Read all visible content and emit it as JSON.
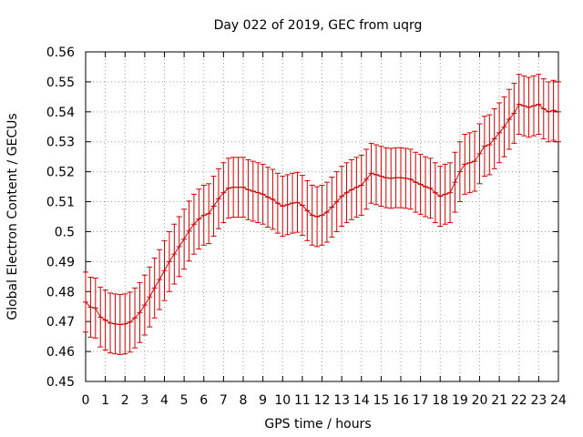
{
  "chart_data": {
    "type": "line",
    "title": "Day 022 of 2019, GEC from uqrg",
    "xlabel": "GPS time / hours",
    "ylabel": "Global Electron Content / GECUs",
    "xlim": [
      0,
      24
    ],
    "ylim": [
      0.45,
      0.56
    ],
    "grid": true,
    "x_ticks": [
      "0",
      "1",
      "2",
      "3",
      "4",
      "5",
      "6",
      "7",
      "8",
      "9",
      "10",
      "11",
      "12",
      "13",
      "14",
      "15",
      "16",
      "17",
      "18",
      "19",
      "20",
      "21",
      "22",
      "23",
      "24"
    ],
    "y_ticks": [
      "0.45",
      "0.46",
      "0.47",
      "0.48",
      "0.49",
      "0.5",
      "0.51",
      "0.52",
      "0.53",
      "0.54",
      "0.55",
      "0.56"
    ],
    "y_tick_values": [
      0.45,
      0.46,
      0.47,
      0.48,
      0.49,
      0.5,
      0.51,
      0.52,
      0.53,
      0.54,
      0.55,
      0.56
    ],
    "error": 0.01,
    "color": "#cc0000",
    "series": [
      {
        "name": "GEC",
        "x": [
          0,
          0.25,
          0.5,
          0.75,
          1,
          1.25,
          1.5,
          1.75,
          2,
          2.25,
          2.5,
          2.75,
          3,
          3.25,
          3.5,
          3.75,
          4,
          4.25,
          4.5,
          4.75,
          5,
          5.25,
          5.5,
          5.75,
          6,
          6.25,
          6.5,
          6.75,
          7,
          7.25,
          7.5,
          7.75,
          8,
          8.25,
          8.5,
          8.75,
          9,
          9.25,
          9.5,
          9.75,
          10,
          10.25,
          10.5,
          10.75,
          11,
          11.25,
          11.5,
          11.75,
          12,
          12.25,
          12.5,
          12.75,
          13,
          13.25,
          13.5,
          13.75,
          14,
          14.25,
          14.5,
          14.75,
          15,
          15.25,
          15.5,
          15.75,
          16,
          16.25,
          16.5,
          16.75,
          17,
          17.25,
          17.5,
          17.75,
          18,
          18.25,
          18.5,
          18.75,
          19,
          19.25,
          19.5,
          19.75,
          20,
          20.25,
          20.5,
          20.75,
          21,
          21.25,
          21.5,
          21.75,
          22,
          22.25,
          22.5,
          22.75,
          23,
          23.25,
          23.5,
          23.75,
          24
        ],
        "y": [
          0.4765,
          0.4748,
          0.4745,
          0.4715,
          0.4705,
          0.4695,
          0.4692,
          0.469,
          0.4692,
          0.4698,
          0.4712,
          0.473,
          0.4755,
          0.4782,
          0.4812,
          0.484,
          0.487,
          0.49,
          0.4925,
          0.495,
          0.4975,
          0.5002,
          0.5025,
          0.5042,
          0.5055,
          0.506,
          0.5085,
          0.511,
          0.513,
          0.5145,
          0.5148,
          0.5148,
          0.5148,
          0.514,
          0.5135,
          0.513,
          0.5125,
          0.5115,
          0.5108,
          0.5095,
          0.5085,
          0.509,
          0.5095,
          0.5098,
          0.5088,
          0.507,
          0.5055,
          0.505,
          0.5055,
          0.5065,
          0.5082,
          0.51,
          0.5118,
          0.513,
          0.514,
          0.5148,
          0.5155,
          0.5175,
          0.5195,
          0.519,
          0.5185,
          0.518,
          0.5178,
          0.518,
          0.518,
          0.5178,
          0.5175,
          0.5165,
          0.5158,
          0.515,
          0.5145,
          0.513,
          0.5118,
          0.5125,
          0.513,
          0.5165,
          0.52,
          0.5225,
          0.523,
          0.5235,
          0.526,
          0.5285,
          0.529,
          0.531,
          0.533,
          0.535,
          0.5375,
          0.5395,
          0.5425,
          0.542,
          0.5415,
          0.542,
          0.5425,
          0.541,
          0.54,
          0.5405,
          0.54
        ]
      }
    ]
  }
}
